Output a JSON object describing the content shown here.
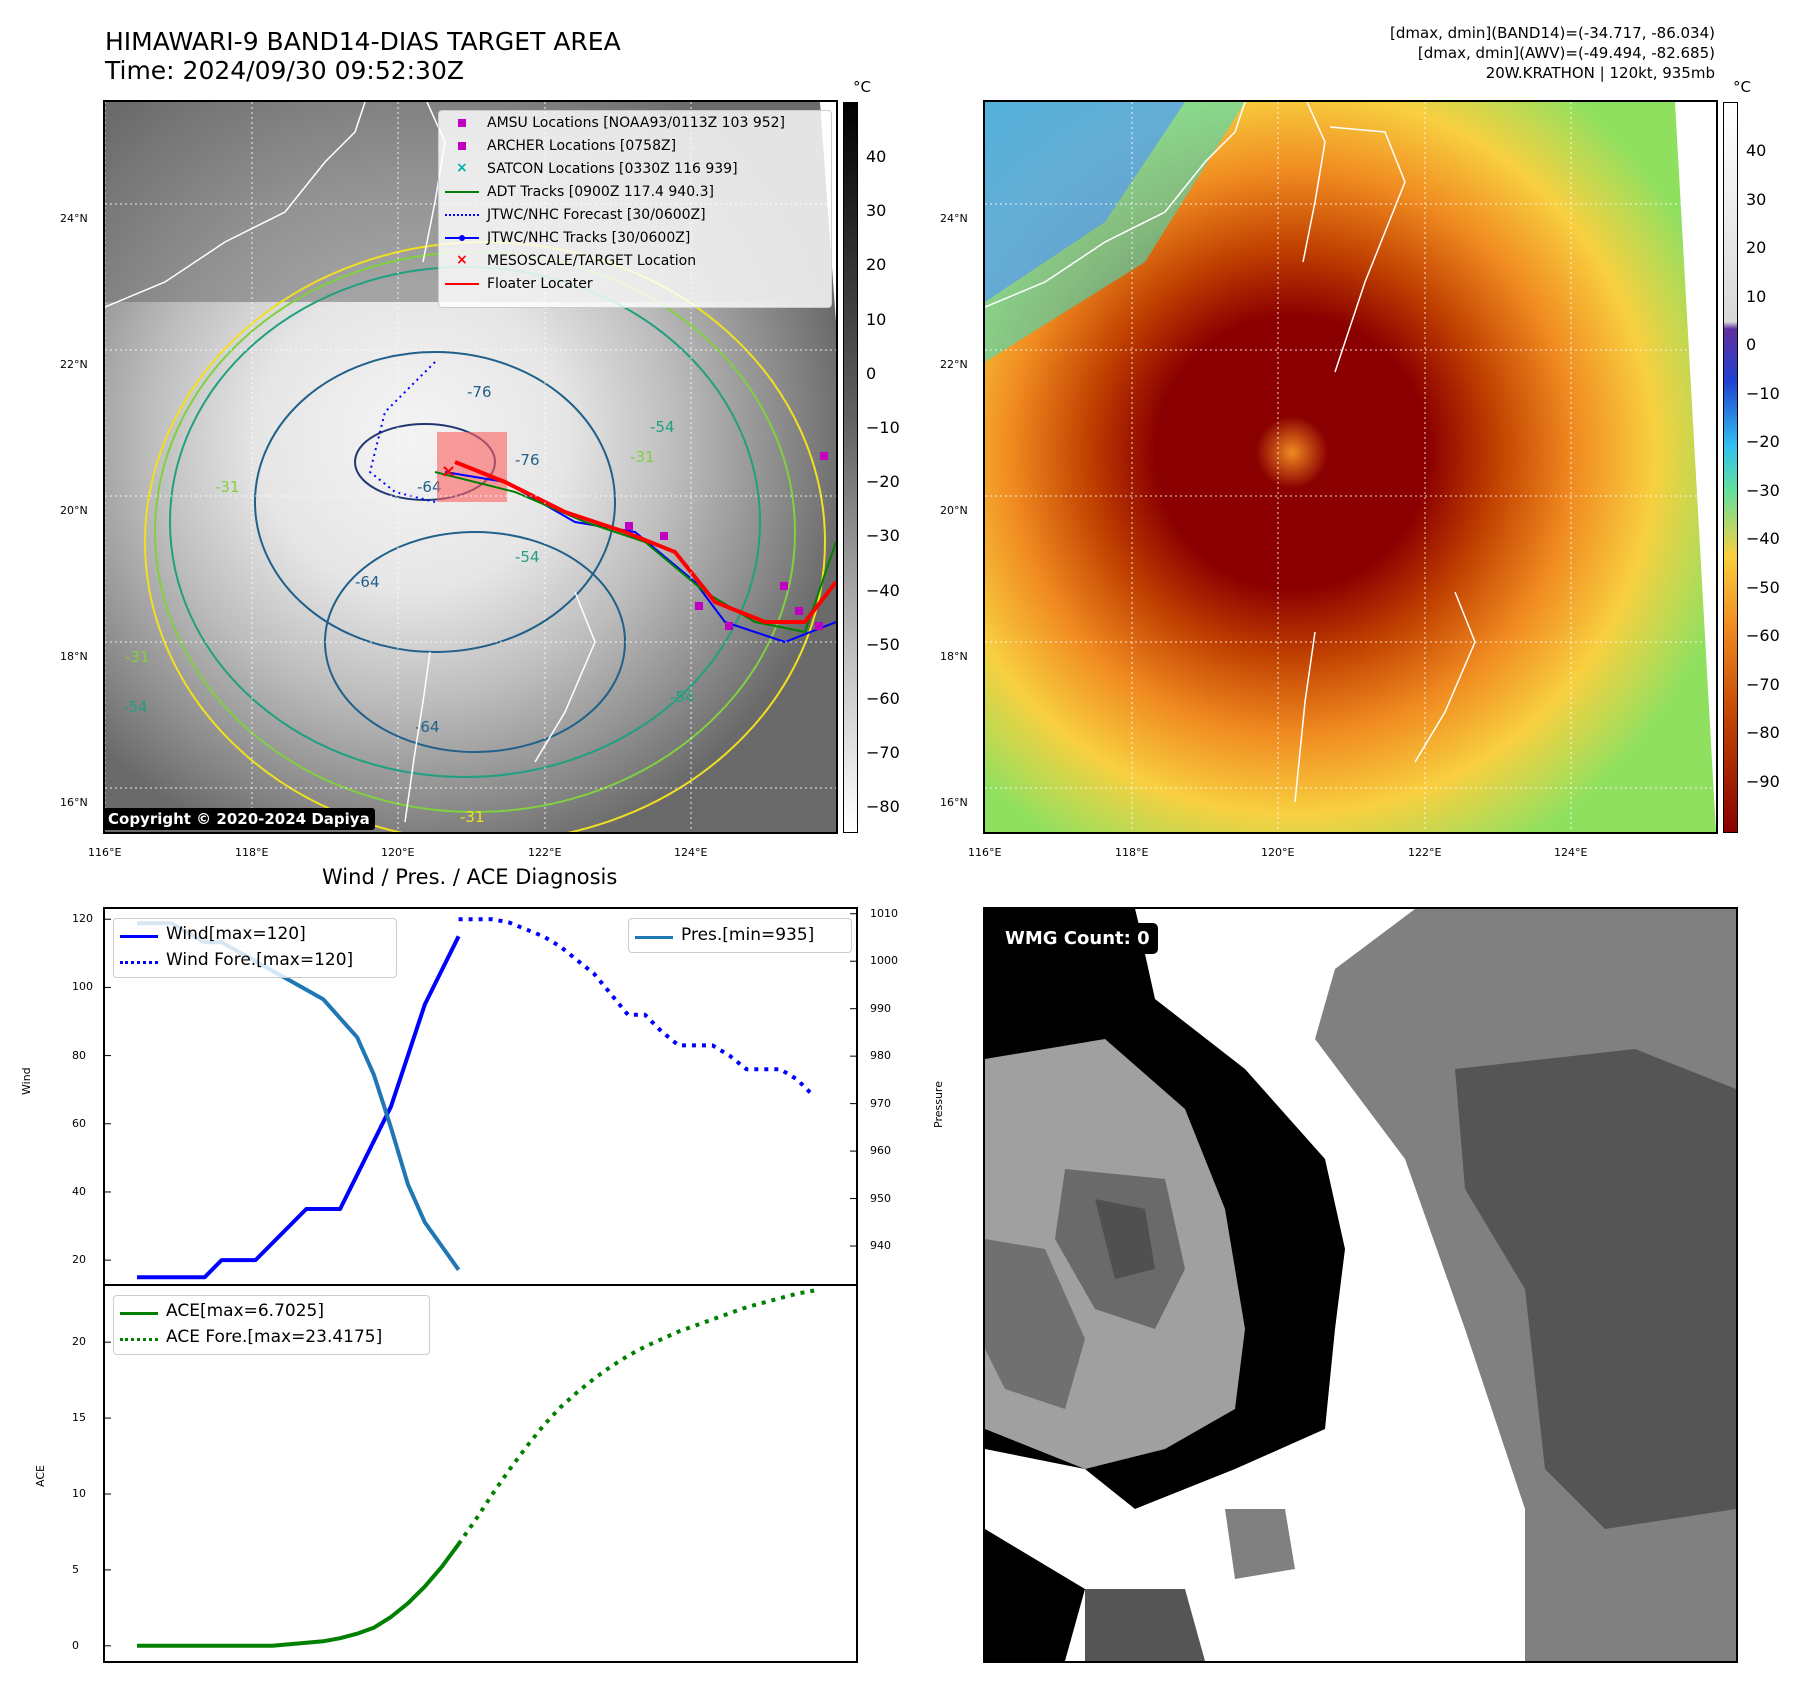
{
  "header": {
    "title_line1": "HIMAWARI-9 BAND14-DIAS TARGET AREA",
    "title_line2": "Time: 2024/09/30 09:52:30Z",
    "info_line1": "[dmax, dmin](BAND14)=(-34.717, -86.034)",
    "info_line2": "[dmax, dmin](AWV)=(-49.494, -82.685)",
    "info_line3": "20W.KRATHON | 120kt, 935mb"
  },
  "map_left": {
    "lat_labels": [
      "24°N",
      "22°N",
      "20°N",
      "18°N",
      "16°N"
    ],
    "lon_labels": [
      "116°E",
      "118°E",
      "120°E",
      "122°E",
      "124°E"
    ],
    "copyright": "Copyright © 2020-2024 Dapiya",
    "contour_labels": [
      "-76",
      "-76",
      "-64",
      "-64",
      "-64",
      "-54",
      "-54",
      "-54",
      "-31",
      "-31",
      "-31",
      "-31",
      "-54"
    ],
    "legend": [
      {
        "label": "AMSU Locations [NOAA93/0113Z 103 952]",
        "color": "#c000c0",
        "symbol": "square"
      },
      {
        "label": "ARCHER Locations [0758Z]",
        "color": "#c000c0",
        "symbol": "square"
      },
      {
        "label": "SATCON Locations [0330Z 116 939]",
        "color": "#00b0b0",
        "symbol": "x"
      },
      {
        "label": "ADT Tracks [0900Z 117.4 940.3]",
        "color": "#008000",
        "symbol": "line"
      },
      {
        "label": "JTWC/NHC Forecast [30/0600Z]",
        "color": "#0000ff",
        "symbol": "dotted"
      },
      {
        "label": "JTWC/NHC Tracks [30/0600Z]",
        "color": "#0000ff",
        "symbol": "line-dot"
      },
      {
        "label": "MESOSCALE/TARGET Location",
        "color": "#ff0000",
        "symbol": "x"
      },
      {
        "label": "Floater Locater",
        "color": "#ff0000",
        "symbol": "line"
      }
    ],
    "colorbar_unit": "°C",
    "colorbar_ticks": [
      "40",
      "30",
      "20",
      "10",
      "0",
      "−10",
      "−20",
      "−30",
      "−40",
      "−50",
      "−60",
      "−70",
      "−80"
    ]
  },
  "map_right": {
    "lat_labels": [
      "24°N",
      "22°N",
      "20°N",
      "18°N",
      "16°N"
    ],
    "lon_labels": [
      "116°E",
      "118°E",
      "120°E",
      "122°E",
      "124°E"
    ],
    "colorbar_unit": "°C",
    "colorbar_ticks": [
      "40",
      "30",
      "20",
      "10",
      "0",
      "−10",
      "−20",
      "−30",
      "−40",
      "−50",
      "−60",
      "−70",
      "−80",
      "−90"
    ]
  },
  "wmg": {
    "label": "WMG Count: 0"
  },
  "chart_data": [
    {
      "type": "line",
      "title": "Wind / Pres. / ACE Diagnosis",
      "ylabel": "Wind",
      "ylabel_right": "Pressure",
      "xlim": [
        0,
        42
      ],
      "ylim": [
        13,
        123
      ],
      "ylim_right": [
        932,
        1011
      ],
      "yticks": [
        20,
        40,
        60,
        80,
        100,
        120
      ],
      "yticks_right": [
        940,
        950,
        960,
        970,
        980,
        990,
        1000,
        1010
      ],
      "series": [
        {
          "name": "Wind[max=120]",
          "style": "solid",
          "color": "#0000ff",
          "x": [
            0,
            3,
            4,
            5,
            6,
            7,
            8,
            9,
            10,
            11,
            12,
            13,
            14,
            15,
            16,
            17,
            18,
            19
          ],
          "values": [
            15,
            15,
            15,
            20,
            20,
            20,
            25,
            30,
            35,
            35,
            35,
            45,
            55,
            65,
            80,
            95,
            105,
            115
          ]
        },
        {
          "name": "Wind Fore.[max=120]",
          "style": "dotted",
          "color": "#0000ff",
          "x": [
            19,
            20,
            21,
            22,
            23,
            24,
            25,
            26,
            27,
            28,
            29,
            30,
            31,
            32,
            33,
            34,
            35,
            36,
            37,
            38,
            39,
            40
          ],
          "values": [
            120,
            120,
            120,
            119,
            117,
            115,
            112,
            108,
            104,
            98,
            92,
            92,
            87,
            83,
            83,
            83,
            80,
            76,
            76,
            76,
            73,
            68
          ]
        },
        {
          "name": "Pres.[min=935]",
          "style": "solid",
          "color": "#1f77b4",
          "axis": "right",
          "x": [
            0,
            1,
            2,
            3,
            4,
            5,
            6,
            7,
            8,
            9,
            10,
            11,
            12,
            13,
            14,
            15,
            16,
            17,
            18,
            19
          ],
          "values": [
            1008,
            1008,
            1008,
            1006,
            1004,
            1004,
            1002,
            1000,
            998,
            996,
            994,
            992,
            988,
            984,
            976,
            965,
            953,
            945,
            940,
            935
          ]
        }
      ]
    },
    {
      "type": "line",
      "ylabel": "ACE",
      "xlim": [
        0,
        42
      ],
      "ylim": [
        -1,
        23.7
      ],
      "yticks": [
        0,
        5,
        10,
        15,
        20
      ],
      "series": [
        {
          "name": "ACE[max=6.7025]",
          "style": "solid",
          "color": "#008000",
          "x": [
            0,
            1,
            2,
            3,
            4,
            5,
            6,
            7,
            8,
            9,
            10,
            11,
            12,
            13,
            14,
            15,
            16,
            17,
            18,
            19
          ],
          "values": [
            0,
            0,
            0,
            0,
            0,
            0,
            0,
            0,
            0,
            0.1,
            0.2,
            0.3,
            0.5,
            0.8,
            1.2,
            1.9,
            2.8,
            3.9,
            5.2,
            6.7
          ]
        },
        {
          "name": "ACE Fore.[max=23.4175]",
          "style": "dotted",
          "color": "#008000",
          "x": [
            19,
            20,
            21,
            22,
            23,
            24,
            25,
            26,
            27,
            28,
            29,
            30,
            31,
            32,
            33,
            34,
            35,
            36,
            37,
            38,
            39,
            40
          ],
          "values": [
            6.7,
            8.3,
            10.0,
            11.6,
            13.1,
            14.5,
            15.7,
            16.7,
            17.6,
            18.4,
            19.1,
            19.7,
            20.2,
            20.7,
            21.1,
            21.5,
            21.9,
            22.3,
            22.6,
            22.9,
            23.2,
            23.4
          ]
        }
      ]
    }
  ]
}
